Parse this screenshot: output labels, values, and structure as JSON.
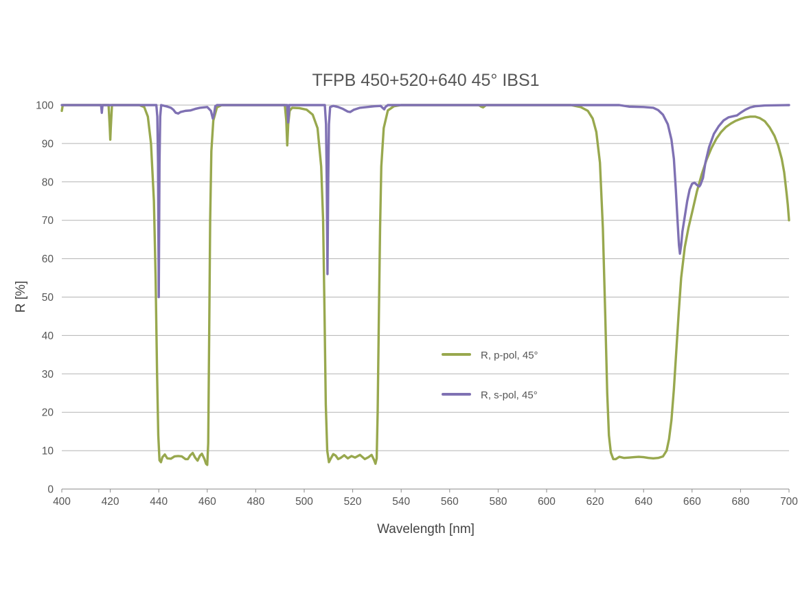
{
  "chart_data": {
    "type": "line",
    "title": "TFPB 450+520+640 45° IBS1",
    "xlabel": "Wavelength [nm]",
    "ylabel": "R [%]",
    "xlim": [
      400,
      700
    ],
    "ylim": [
      0,
      100
    ],
    "x_ticks": [
      400,
      420,
      440,
      460,
      480,
      500,
      520,
      540,
      560,
      580,
      600,
      620,
      640,
      660,
      680,
      700
    ],
    "y_ticks": [
      0,
      10,
      20,
      30,
      40,
      50,
      60,
      70,
      80,
      90,
      100
    ],
    "grid": true,
    "legend_position": "center-right",
    "series": [
      {
        "name": "R, p-pol, 45°",
        "color": "#98a84e",
        "points": [
          [
            400,
            98.5
          ],
          [
            400.4,
            100
          ],
          [
            419.3,
            100
          ],
          [
            419.8,
            94
          ],
          [
            420,
            91
          ],
          [
            420.2,
            94
          ],
          [
            420.7,
            100
          ],
          [
            432,
            100
          ],
          [
            434,
            99.5
          ],
          [
            435.5,
            97
          ],
          [
            436.8,
            90
          ],
          [
            438,
            75
          ],
          [
            438.7,
            55
          ],
          [
            439.3,
            30
          ],
          [
            439.8,
            14
          ],
          [
            440.3,
            7.5
          ],
          [
            440.9,
            7
          ],
          [
            441.5,
            8.3
          ],
          [
            442.5,
            9
          ],
          [
            443.5,
            8
          ],
          [
            445,
            7.9
          ],
          [
            446.5,
            8.5
          ],
          [
            448,
            8.6
          ],
          [
            449.5,
            8.5
          ],
          [
            451,
            7.8
          ],
          [
            452,
            7.8
          ],
          [
            453,
            8.8
          ],
          [
            454,
            9.4
          ],
          [
            455,
            8.2
          ],
          [
            456,
            7.4
          ],
          [
            457,
            8.7
          ],
          [
            457.8,
            9.2
          ],
          [
            458.8,
            7.9
          ],
          [
            459.5,
            6.6
          ],
          [
            460,
            6.3
          ],
          [
            460.4,
            12
          ],
          [
            460.8,
            40
          ],
          [
            461.2,
            70
          ],
          [
            461.7,
            88
          ],
          [
            462.5,
            96
          ],
          [
            464,
            99.4
          ],
          [
            466,
            100
          ],
          [
            492,
            100
          ],
          [
            492.6,
            96
          ],
          [
            493,
            89.5
          ],
          [
            493.4,
            95
          ],
          [
            494,
            98.5
          ],
          [
            495,
            99.3
          ],
          [
            498,
            99.2
          ],
          [
            501,
            98.8
          ],
          [
            503.5,
            97.5
          ],
          [
            505.5,
            94
          ],
          [
            507,
            84
          ],
          [
            507.8,
            70
          ],
          [
            508.4,
            45
          ],
          [
            508.9,
            22
          ],
          [
            509.5,
            10
          ],
          [
            510.2,
            7
          ],
          [
            511,
            8
          ],
          [
            512,
            9.1
          ],
          [
            513,
            8.7
          ],
          [
            514,
            7.8
          ],
          [
            515,
            8.1
          ],
          [
            516.5,
            8.8
          ],
          [
            518,
            8
          ],
          [
            519.5,
            8.6
          ],
          [
            521,
            8.2
          ],
          [
            523,
            8.9
          ],
          [
            525,
            7.8
          ],
          [
            526.5,
            8.3
          ],
          [
            527.8,
            8.9
          ],
          [
            528.8,
            7.6
          ],
          [
            529.4,
            6.6
          ],
          [
            529.9,
            8
          ],
          [
            530.3,
            20
          ],
          [
            530.8,
            45
          ],
          [
            531.3,
            68
          ],
          [
            531.8,
            84
          ],
          [
            532.8,
            94
          ],
          [
            534.5,
            98.6
          ],
          [
            537,
            99.7
          ],
          [
            540,
            100
          ],
          [
            572,
            100
          ],
          [
            573,
            99.6
          ],
          [
            573.8,
            99.4
          ],
          [
            575,
            100
          ],
          [
            610,
            100
          ],
          [
            614,
            99.5
          ],
          [
            617,
            98.5
          ],
          [
            619,
            96.5
          ],
          [
            620.5,
            93
          ],
          [
            622,
            85
          ],
          [
            623.2,
            68
          ],
          [
            624.2,
            45
          ],
          [
            625,
            25
          ],
          [
            625.7,
            14
          ],
          [
            626.5,
            9.5
          ],
          [
            627.5,
            7.8
          ],
          [
            628.5,
            7.8
          ],
          [
            630,
            8.4
          ],
          [
            632,
            8.1
          ],
          [
            634,
            8.2
          ],
          [
            636,
            8.3
          ],
          [
            638,
            8.4
          ],
          [
            640,
            8.3
          ],
          [
            642,
            8.1
          ],
          [
            644,
            8
          ],
          [
            646,
            8.1
          ],
          [
            648,
            8.5
          ],
          [
            649.5,
            10
          ],
          [
            650.5,
            13
          ],
          [
            651.5,
            18
          ],
          [
            652.5,
            26
          ],
          [
            653.5,
            36
          ],
          [
            654.5,
            46
          ],
          [
            655.5,
            55
          ],
          [
            657,
            63
          ],
          [
            658.5,
            68
          ],
          [
            660,
            72
          ],
          [
            662,
            77.5
          ],
          [
            664,
            82
          ],
          [
            666,
            85.8
          ],
          [
            668,
            88.8
          ],
          [
            670,
            91.2
          ],
          [
            672,
            93
          ],
          [
            674,
            94.3
          ],
          [
            676,
            95.2
          ],
          [
            678,
            95.9
          ],
          [
            680,
            96.4
          ],
          [
            682,
            96.8
          ],
          [
            684,
            97
          ],
          [
            686,
            97
          ],
          [
            688,
            96.6
          ],
          [
            690,
            95.8
          ],
          [
            692,
            94.2
          ],
          [
            694,
            92
          ],
          [
            695.5,
            89.5
          ],
          [
            697,
            86
          ],
          [
            698,
            82.5
          ],
          [
            699,
            77
          ],
          [
            699.5,
            74
          ],
          [
            700,
            70
          ]
        ]
      },
      {
        "name": "R, s-pol, 45°",
        "color": "#7f71b3",
        "points": [
          [
            400,
            100
          ],
          [
            416.2,
            100
          ],
          [
            416.5,
            98
          ],
          [
            416.8,
            100
          ],
          [
            439,
            100
          ],
          [
            439.4,
            97
          ],
          [
            439.7,
            85
          ],
          [
            440,
            50
          ],
          [
            440.3,
            85
          ],
          [
            440.6,
            97
          ],
          [
            441,
            100
          ],
          [
            443,
            99.7
          ],
          [
            445,
            99.3
          ],
          [
            446,
            98.8
          ],
          [
            447,
            98
          ],
          [
            448,
            97.8
          ],
          [
            449,
            98.2
          ],
          [
            451,
            98.5
          ],
          [
            453,
            98.6
          ],
          [
            455,
            99
          ],
          [
            457,
            99.3
          ],
          [
            460,
            99.5
          ],
          [
            461.5,
            98.5
          ],
          [
            462.3,
            96.5
          ],
          [
            462.8,
            97.5
          ],
          [
            463.3,
            99.7
          ],
          [
            464,
            100
          ],
          [
            493,
            100
          ],
          [
            493.2,
            97.5
          ],
          [
            493.4,
            95.5
          ],
          [
            493.6,
            97.5
          ],
          [
            493.8,
            100
          ],
          [
            508.5,
            100
          ],
          [
            509,
            95
          ],
          [
            509.3,
            80
          ],
          [
            509.6,
            56
          ],
          [
            509.9,
            80
          ],
          [
            510.2,
            95
          ],
          [
            510.7,
            99.5
          ],
          [
            512,
            99.8
          ],
          [
            514,
            99.5
          ],
          [
            516,
            99
          ],
          [
            518,
            98.3
          ],
          [
            519,
            98.2
          ],
          [
            520.5,
            98.8
          ],
          [
            523,
            99.3
          ],
          [
            526,
            99.5
          ],
          [
            529,
            99.7
          ],
          [
            531.5,
            99.8
          ],
          [
            532.5,
            99.2
          ],
          [
            533,
            98.9
          ],
          [
            533.5,
            99.5
          ],
          [
            534.5,
            100
          ],
          [
            620,
            100
          ],
          [
            630,
            100
          ],
          [
            634,
            99.6
          ],
          [
            640,
            99.5
          ],
          [
            644,
            99.3
          ],
          [
            646,
            98.7
          ],
          [
            648,
            97.5
          ],
          [
            650,
            95
          ],
          [
            651.5,
            91
          ],
          [
            652.5,
            86
          ],
          [
            653.3,
            78
          ],
          [
            654,
            70
          ],
          [
            654.6,
            63.5
          ],
          [
            655,
            61.3
          ],
          [
            655.5,
            63.5
          ],
          [
            656,
            67
          ],
          [
            657,
            71
          ],
          [
            658,
            75
          ],
          [
            659,
            78
          ],
          [
            660,
            79.5
          ],
          [
            661,
            79.8
          ],
          [
            662,
            79.2
          ],
          [
            663,
            78.8
          ],
          [
            663.5,
            79.3
          ],
          [
            664.5,
            81
          ],
          [
            665.5,
            85
          ],
          [
            667,
            89
          ],
          [
            669,
            92.5
          ],
          [
            671,
            94.5
          ],
          [
            673,
            96
          ],
          [
            675,
            96.8
          ],
          [
            677,
            97.1
          ],
          [
            678.5,
            97.3
          ],
          [
            680,
            98
          ],
          [
            682,
            98.8
          ],
          [
            684,
            99.4
          ],
          [
            686,
            99.7
          ],
          [
            690,
            99.9
          ],
          [
            700,
            100
          ]
        ]
      }
    ]
  }
}
